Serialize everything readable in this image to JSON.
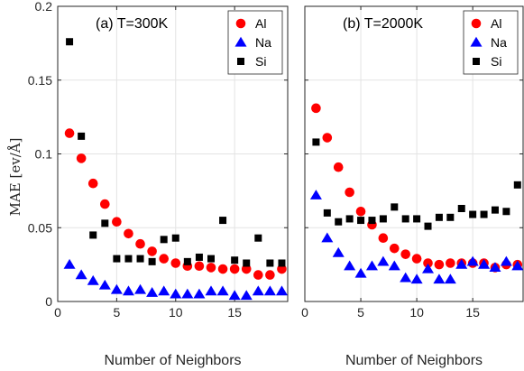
{
  "chart_data": [
    {
      "type": "scatter",
      "title": "(a) T=300K",
      "xlabel": "Number of Neighbors",
      "ylabel": "MAE [ev/Å]",
      "xlim": [
        0,
        19.5
      ],
      "ylim": [
        0,
        0.2
      ],
      "xticks": [
        0,
        5,
        10,
        15
      ],
      "yticks": [
        0,
        0.05,
        0.1,
        0.15,
        0.2
      ],
      "yticklabels": [
        "0",
        "0.05",
        "0.1",
        "0.15",
        "0.2"
      ],
      "grid": true,
      "legend": "top-right",
      "x": [
        1,
        2,
        3,
        4,
        5,
        6,
        7,
        8,
        9,
        10,
        11,
        12,
        13,
        14,
        15,
        16,
        17,
        18,
        19
      ],
      "series": [
        {
          "name": "Al",
          "marker": "circle",
          "color": "#ff0000",
          "values": [
            0.114,
            0.097,
            0.08,
            0.066,
            0.054,
            0.046,
            0.039,
            0.034,
            0.029,
            0.026,
            0.024,
            0.024,
            0.023,
            0.022,
            0.022,
            0.022,
            0.018,
            0.018,
            0.022
          ]
        },
        {
          "name": "Na",
          "marker": "triangle",
          "color": "#0000ff",
          "values": [
            0.025,
            0.018,
            0.014,
            0.011,
            0.008,
            0.007,
            0.008,
            0.006,
            0.007,
            0.005,
            0.005,
            0.005,
            0.007,
            0.007,
            0.004,
            0.004,
            0.007,
            0.007,
            0.007
          ]
        },
        {
          "name": "Si",
          "marker": "square",
          "color": "#000000",
          "values": [
            0.176,
            0.112,
            0.045,
            0.053,
            0.029,
            0.029,
            0.029,
            0.027,
            0.042,
            0.043,
            0.027,
            0.03,
            0.029,
            0.055,
            0.028,
            0.026,
            0.043,
            0.026,
            0.026
          ]
        }
      ]
    },
    {
      "type": "scatter",
      "title": "(b) T=2000K",
      "xlabel": "Number of Neighbors",
      "ylabel": "",
      "xlim": [
        0,
        19.5
      ],
      "ylim": [
        0,
        0.2
      ],
      "xticks": [
        0,
        5,
        10,
        15
      ],
      "yticks": [
        0,
        0.05,
        0.1,
        0.15,
        0.2
      ],
      "grid": true,
      "legend": "top-right",
      "x": [
        1,
        2,
        3,
        4,
        5,
        6,
        7,
        8,
        9,
        10,
        11,
        12,
        13,
        14,
        15,
        16,
        17,
        18,
        19
      ],
      "series": [
        {
          "name": "Al",
          "marker": "circle",
          "color": "#ff0000",
          "values": [
            0.131,
            0.111,
            0.091,
            0.074,
            0.061,
            0.052,
            0.043,
            0.036,
            0.032,
            0.029,
            0.026,
            0.025,
            0.026,
            0.026,
            0.026,
            0.026,
            0.023,
            0.025,
            0.025
          ]
        },
        {
          "name": "Na",
          "marker": "triangle",
          "color": "#0000ff",
          "values": [
            0.072,
            0.043,
            0.033,
            0.024,
            0.019,
            0.024,
            0.027,
            0.024,
            0.016,
            0.015,
            0.022,
            0.015,
            0.015,
            0.025,
            0.027,
            0.025,
            0.023,
            0.027,
            0.024
          ]
        },
        {
          "name": "Si",
          "marker": "square",
          "color": "#000000",
          "values": [
            0.108,
            0.06,
            0.054,
            0.056,
            0.055,
            0.055,
            0.056,
            0.064,
            0.056,
            0.056,
            0.051,
            0.057,
            0.057,
            0.063,
            0.059,
            0.059,
            0.062,
            0.061,
            0.079
          ]
        }
      ]
    }
  ]
}
